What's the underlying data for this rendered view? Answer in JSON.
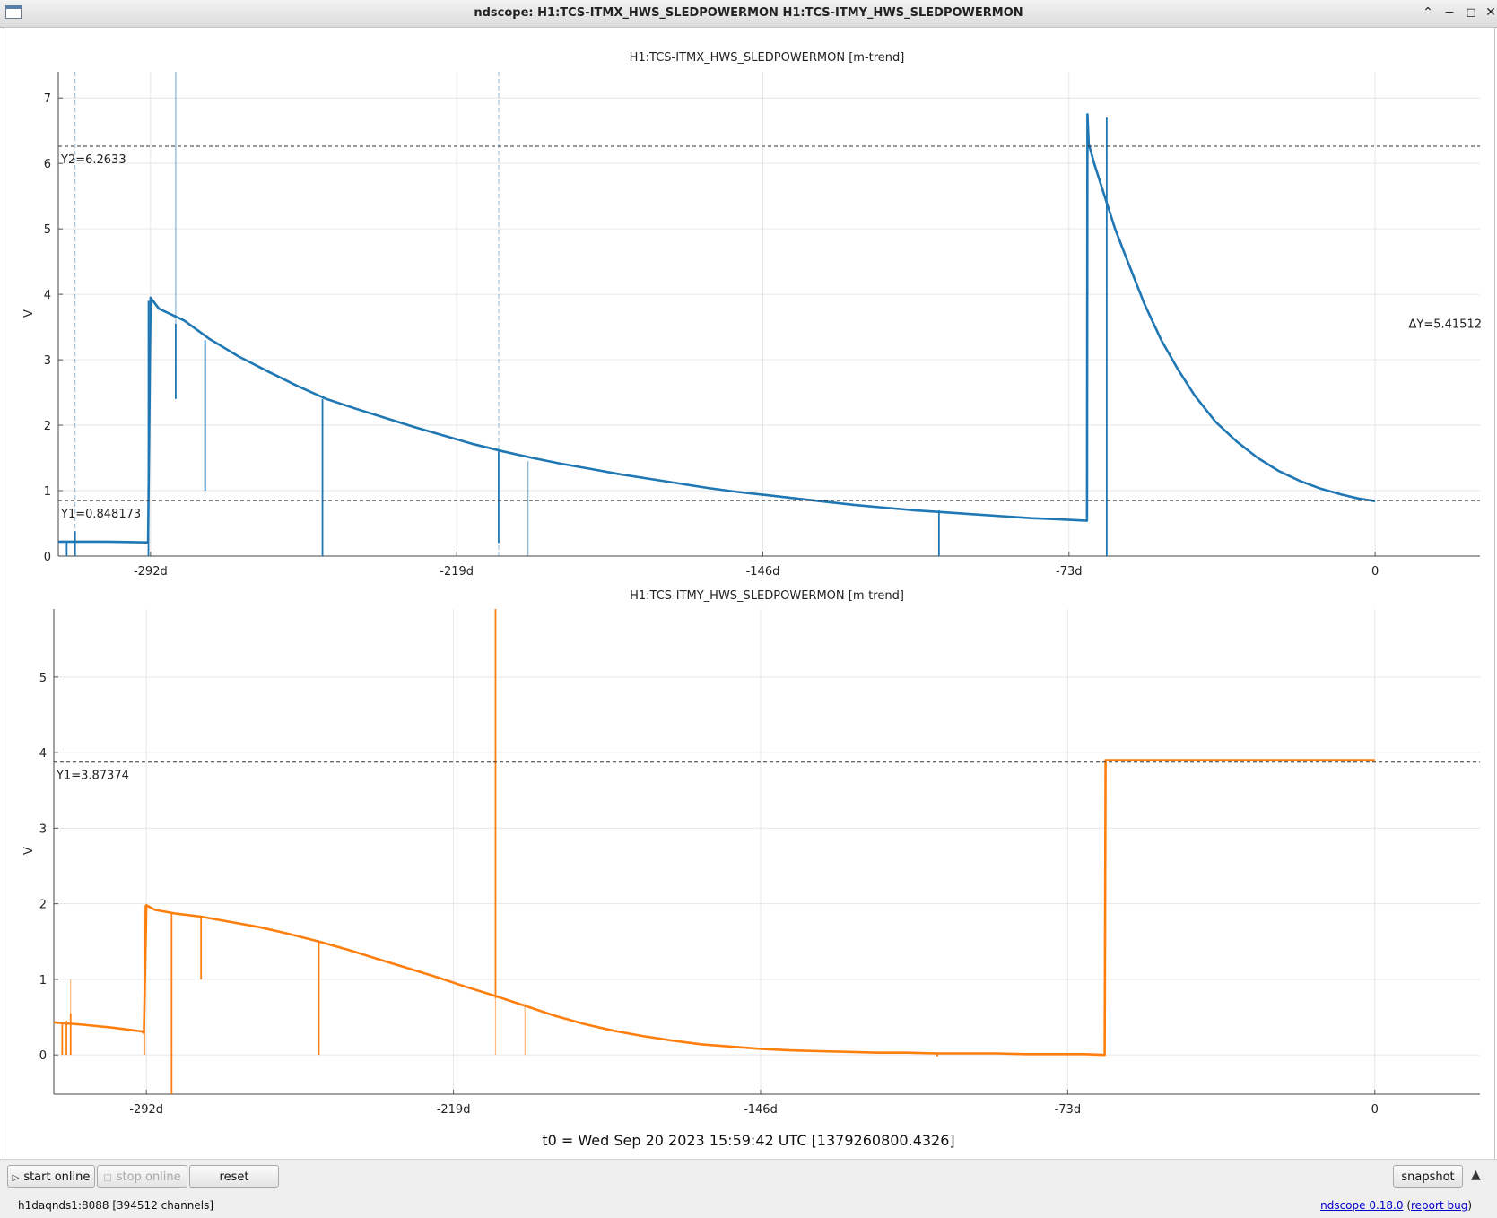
{
  "window": {
    "title": "ndscope: H1:TCS-ITMX_HWS_SLEDPOWERMON H1:TCS-ITMY_HWS_SLEDPOWERMON"
  },
  "colors": {
    "itmx": "#1f77b4",
    "itmy": "#ff7f0e",
    "cursor": "#333333",
    "grid": "#e6e6e6"
  },
  "chart_data": [
    {
      "type": "line",
      "title": "H1:TCS-ITMX_HWS_SLEDPOWERMON [m-trend]",
      "ylabel": "V",
      "x_unit": "days relative to t0",
      "xlim": [
        -314,
        25
      ],
      "ylim": [
        0,
        7.4
      ],
      "x_ticks": [
        -292,
        -219,
        -146,
        -73,
        0
      ],
      "x_tick_labels": [
        "-292d",
        "-219d",
        "-146d",
        "-73d",
        "0"
      ],
      "y_ticks": [
        0,
        1,
        2,
        3,
        4,
        5,
        6,
        7
      ],
      "grid": true,
      "series": [
        {
          "x": [
            -314,
            -303,
            -293,
            -292.6,
            -292,
            -290,
            -284,
            -278,
            -271,
            -264,
            -257,
            -250,
            -243,
            -236,
            -229,
            -222,
            -215,
            -208,
            -201,
            -194,
            -187,
            -180,
            -173,
            -166,
            -159,
            -152,
            -145,
            -138,
            -131,
            -124,
            -117,
            -110,
            -103,
            -96,
            -89,
            -82,
            -75,
            -68.7,
            -68.6,
            -68.3,
            -67,
            -65,
            -62,
            -59,
            -55,
            -51,
            -47,
            -43,
            -38,
            -33,
            -28,
            -23,
            -18,
            -13,
            -8,
            -4,
            0
          ],
          "y": [
            0.22,
            0.22,
            0.21,
            0.21,
            3.95,
            3.78,
            3.6,
            3.32,
            3.05,
            2.82,
            2.6,
            2.4,
            2.25,
            2.11,
            1.97,
            1.84,
            1.71,
            1.6,
            1.5,
            1.41,
            1.33,
            1.25,
            1.18,
            1.11,
            1.04,
            0.98,
            0.93,
            0.88,
            0.83,
            0.78,
            0.74,
            0.7,
            0.67,
            0.64,
            0.61,
            0.58,
            0.56,
            0.54,
            6.75,
            6.3,
            6.0,
            5.6,
            5.0,
            4.5,
            3.85,
            3.3,
            2.85,
            2.45,
            2.05,
            1.75,
            1.5,
            1.3,
            1.15,
            1.03,
            0.94,
            0.88,
            0.84
          ]
        }
      ],
      "spikes": [
        {
          "x": -312,
          "y0": 0,
          "y1": 0.22
        },
        {
          "x": -310,
          "y0": 0,
          "y1": 0.38
        },
        {
          "x": -292.5,
          "y0": 0,
          "y1": 3.9
        },
        {
          "x": -286,
          "y0": 2.4,
          "y1": 7.4,
          "faint": true
        },
        {
          "x": -286,
          "y0": 2.4,
          "y1": 3.55
        },
        {
          "x": -279,
          "y0": 1.0,
          "y1": 3.3
        },
        {
          "x": -251,
          "y0": 0,
          "y1": 2.4
        },
        {
          "x": -209,
          "y0": 0.2,
          "y1": 1.6
        },
        {
          "x": -202,
          "y0": 0,
          "y1": 1.45,
          "faint": true
        },
        {
          "x": -104,
          "y0": 0,
          "y1": 0.7
        },
        {
          "x": -64,
          "y0": 0,
          "y1": 6.7
        }
      ],
      "cursors": {
        "Y1": 0.848173,
        "Y2": 6.2633,
        "dY": 5.41512,
        "vertical_dashed_x": [
          -310,
          -209
        ]
      },
      "labels": {
        "y1": "Y1=0.848173",
        "y2": "Y2=6.2633",
        "dy": "ΔY=5.41512"
      }
    },
    {
      "type": "line",
      "title": "H1:TCS-ITMY_HWS_SLEDPOWERMON [m-trend]",
      "ylabel": "V",
      "x_unit": "days relative to t0",
      "xlim": [
        -314,
        25
      ],
      "ylim": [
        -0.52,
        5.9
      ],
      "x_ticks": [
        -292,
        -219,
        -146,
        -73,
        0
      ],
      "x_tick_labels": [
        "-292d",
        "-219d",
        "-146d",
        "-73d",
        "0"
      ],
      "y_ticks": [
        0,
        1,
        2,
        3,
        4,
        5
      ],
      "grid": true,
      "series": [
        {
          "x": [
            -314,
            -307,
            -300,
            -293,
            -292.6,
            -292,
            -290,
            -285,
            -279,
            -272,
            -265,
            -258,
            -251,
            -244,
            -237,
            -230,
            -223,
            -216,
            -209,
            -202,
            -195,
            -188,
            -181,
            -174,
            -167,
            -160,
            -153,
            -146,
            -139,
            -132,
            -125,
            -118,
            -111,
            -104,
            -97,
            -90,
            -83,
            -76,
            -69,
            -64.2,
            -64,
            -63,
            -55,
            -45,
            -35,
            -25,
            -15,
            -5,
            0
          ],
          "y": [
            0.43,
            0.4,
            0.36,
            0.31,
            0.29,
            1.98,
            1.92,
            1.87,
            1.83,
            1.76,
            1.69,
            1.6,
            1.5,
            1.39,
            1.27,
            1.15,
            1.03,
            0.9,
            0.78,
            0.65,
            0.52,
            0.41,
            0.32,
            0.25,
            0.19,
            0.14,
            0.11,
            0.08,
            0.06,
            0.05,
            0.04,
            0.03,
            0.03,
            0.02,
            0.02,
            0.02,
            0.01,
            0.01,
            0.01,
            0.0,
            3.9,
            3.9,
            3.9,
            3.9,
            3.9,
            3.9,
            3.9,
            3.9,
            3.9
          ]
        }
      ],
      "spikes": [
        {
          "x": -312,
          "y0": 0,
          "y1": 0.43
        },
        {
          "x": -311,
          "y0": 0,
          "y1": 0.45
        },
        {
          "x": -310,
          "y0": 0,
          "y1": 0.55
        },
        {
          "x": -310,
          "y0": 0.3,
          "y1": 1.0,
          "faint": true
        },
        {
          "x": -292.5,
          "y0": 0,
          "y1": 1.98
        },
        {
          "x": -286,
          "y0": -0.52,
          "y1": 1.88
        },
        {
          "x": -279,
          "y0": 1.0,
          "y1": 1.83
        },
        {
          "x": -251,
          "y0": 0,
          "y1": 1.5
        },
        {
          "x": -209,
          "y0": 0.75,
          "y1": 5.9
        },
        {
          "x": -209,
          "y0": 0,
          "y1": 0.78,
          "faint": true
        },
        {
          "x": -202,
          "y0": 0,
          "y1": 0.68,
          "faint": true
        },
        {
          "x": -104,
          "y0": -0.02,
          "y1": 0.03
        }
      ],
      "cursors": {
        "Y1": 3.87374
      },
      "labels": {
        "y1": "Y1=3.87374"
      }
    }
  ],
  "t0_label": "t0 = Wed Sep 20 2023 15:59:42 UTC [1379260800.4326]",
  "toolbar": {
    "start_online": "start online",
    "stop_online": "stop online",
    "reset": "reset",
    "snapshot": "snapshot"
  },
  "status": {
    "server": "h1daqnds1:8088  [394512 channels]",
    "version": "ndscope 0.18.0",
    "report_bug": "report bug"
  }
}
